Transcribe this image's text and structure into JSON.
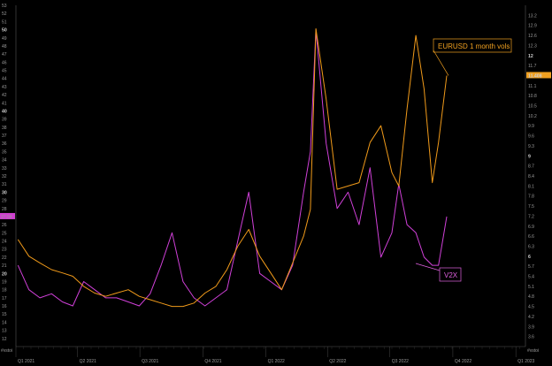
{
  "chart_data": {
    "type": "line",
    "title": "",
    "legend": "none",
    "grid": false,
    "background": "#000000",
    "x_ticks": [
      "Q1 2021",
      "Q2 2021",
      "Q3 2021",
      "Q4 2021",
      "Q1 2022",
      "Q2 2022",
      "Q3 2022",
      "Q4 2022",
      "Q1 2023"
    ],
    "x_tick_positions": [
      "2021-01-01",
      "2021-04-01",
      "2021-07-01",
      "2021-10-01",
      "2022-01-01",
      "2022-04-01",
      "2022-07-01",
      "2022-10-01",
      "2023-01-01"
    ],
    "xlim": [
      "2021-01-01",
      "2023-01-15"
    ],
    "left_axis": {
      "ylim": [
        11,
        53
      ],
      "ticks": [
        12,
        13,
        14,
        15,
        16,
        17,
        18,
        19,
        20,
        21,
        22,
        23,
        24,
        25,
        26,
        27,
        28,
        29,
        30,
        31,
        32,
        33,
        34,
        35,
        36,
        37,
        38,
        39,
        40,
        41,
        42,
        43,
        44,
        45,
        46,
        47,
        48,
        49,
        50,
        51,
        52,
        53
      ],
      "strong_ticks": [
        20,
        30,
        40,
        50
      ],
      "unit_label": "#vstoi",
      "last_value_badge": "27.04",
      "badge_color": "#d040d0"
    },
    "right_axis": {
      "ylim": [
        3.3,
        13.5
      ],
      "ticks": [
        3.6,
        3.9,
        4.2,
        4.5,
        4.8,
        5.1,
        5.4,
        5.7,
        6,
        6.3,
        6.6,
        6.9,
        7.2,
        7.5,
        7.8,
        8.1,
        8.4,
        8.7,
        9,
        9.3,
        9.6,
        9.9,
        10.2,
        10.5,
        10.8,
        11.1,
        11.4,
        11.7,
        12,
        12.3,
        12.6,
        12.9,
        13.2
      ],
      "strong_ticks": [
        6,
        9,
        12
      ],
      "unit_label": "#vstoi",
      "last_value_badge": "11.408",
      "badge_color": "#f0a020"
    },
    "series": [
      {
        "name": "EURUSD 1 month vols",
        "color": "#f09a1a",
        "axis": "right",
        "x": [
          "2021-01-04",
          "2021-01-20",
          "2021-02-05",
          "2021-02-22",
          "2021-03-10",
          "2021-03-25",
          "2021-04-10",
          "2021-04-26",
          "2021-05-12",
          "2021-05-28",
          "2021-06-14",
          "2021-06-30",
          "2021-07-16",
          "2021-08-01",
          "2021-08-17",
          "2021-09-02",
          "2021-09-18",
          "2021-10-04",
          "2021-10-20",
          "2021-11-05",
          "2021-11-21",
          "2021-12-07",
          "2021-12-23",
          "2022-01-08",
          "2022-01-24",
          "2022-02-09",
          "2022-02-25",
          "2022-03-07",
          "2022-03-15",
          "2022-03-30",
          "2022-04-15",
          "2022-05-01",
          "2022-05-17",
          "2022-06-02",
          "2022-06-18",
          "2022-07-04",
          "2022-07-14",
          "2022-07-26",
          "2022-08-08",
          "2022-08-20",
          "2022-09-01",
          "2022-09-10",
          "2022-09-22"
        ],
        "values": [
          6.5,
          6.0,
          5.8,
          5.6,
          5.5,
          5.4,
          5.1,
          4.9,
          4.8,
          4.9,
          5.0,
          4.8,
          4.7,
          4.6,
          4.5,
          4.5,
          4.6,
          4.9,
          5.1,
          5.6,
          6.3,
          6.8,
          6.0,
          5.5,
          5.0,
          5.8,
          6.6,
          7.4,
          12.8,
          10.7,
          8.0,
          8.1,
          8.2,
          9.4,
          9.9,
          8.5,
          8.1,
          10.4,
          12.6,
          11.0,
          8.2,
          9.4,
          11.4
        ]
      },
      {
        "name": "V2X",
        "color": "#d040d8",
        "axis": "left",
        "x": [
          "2021-01-04",
          "2021-01-20",
          "2021-02-05",
          "2021-02-22",
          "2021-03-10",
          "2021-03-25",
          "2021-04-10",
          "2021-04-26",
          "2021-05-12",
          "2021-05-28",
          "2021-06-14",
          "2021-06-30",
          "2021-07-16",
          "2021-08-01",
          "2021-08-17",
          "2021-09-02",
          "2021-09-18",
          "2021-10-04",
          "2021-10-20",
          "2021-11-05",
          "2021-11-21",
          "2021-12-07",
          "2021-12-23",
          "2022-01-08",
          "2022-01-24",
          "2022-02-09",
          "2022-02-25",
          "2022-03-07",
          "2022-03-15",
          "2022-03-30",
          "2022-04-15",
          "2022-05-01",
          "2022-05-17",
          "2022-06-02",
          "2022-06-18",
          "2022-07-04",
          "2022-07-14",
          "2022-07-26",
          "2022-08-08",
          "2022-08-20",
          "2022-09-01",
          "2022-09-10",
          "2022-09-22"
        ],
        "values": [
          21,
          18,
          17,
          17.5,
          16.5,
          16,
          19,
          18,
          17,
          17,
          16.5,
          16,
          17.5,
          21,
          25,
          19,
          17,
          16,
          17,
          18,
          24,
          30,
          20,
          19,
          18,
          21,
          30,
          35,
          50,
          36,
          28,
          30,
          26,
          33,
          22,
          25,
          31,
          26,
          25,
          22,
          21,
          21,
          27
        ]
      }
    ],
    "annotations": [
      {
        "text": "EURUSD 1 month vols",
        "series": "EURUSD 1 month vols",
        "color": "#f0a020"
      },
      {
        "text": "V2X",
        "series": "V2X",
        "color": "#e060e0"
      }
    ]
  }
}
